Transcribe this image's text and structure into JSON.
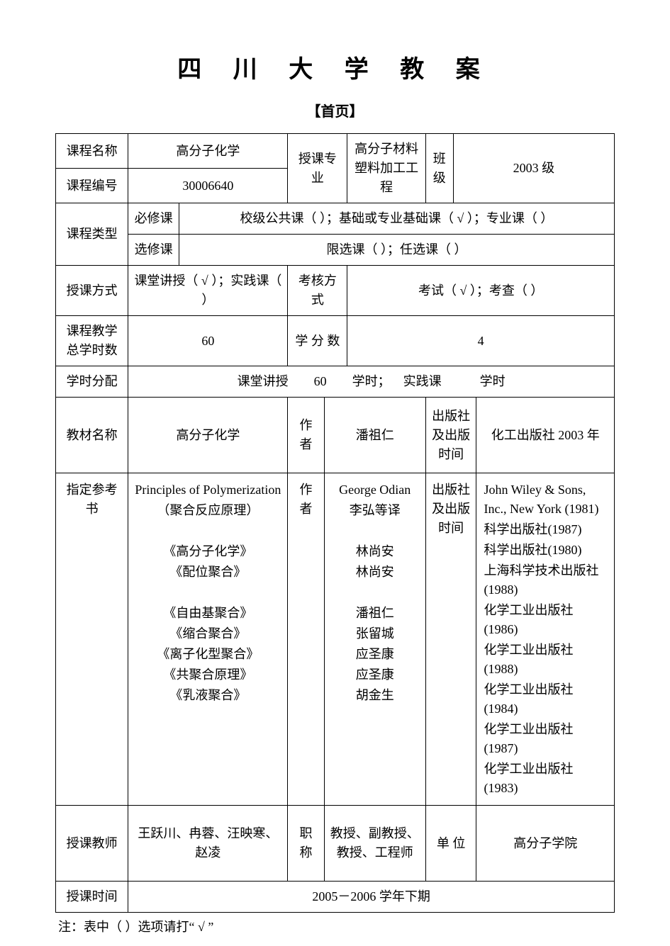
{
  "title": "四 川 大 学 教 案",
  "subtitle": "【首页】",
  "labels": {
    "course_name": "课程名称",
    "course_code": "课程编号",
    "major": "授课专业",
    "class": "班级",
    "course_type": "课程类型",
    "required": "必修课",
    "elective": "选修课",
    "teach_method": "授课方式",
    "exam_method": "考核方式",
    "total_hours": "课程教学总学时数",
    "credits": "学 分 数",
    "hours_dist": "学时分配",
    "textbook": "教材名称",
    "author": "作 者",
    "author2": "作 者",
    "publisher": "出版社及出版时间",
    "publisher2": "出版社及出版时间",
    "ref_books": "指定参考书",
    "teacher": "授课教师",
    "title_rank": "职 称",
    "unit": "单 位",
    "teach_time": "授课时间"
  },
  "values": {
    "course_name": "高分子化学",
    "course_code": "30006640",
    "major": "高分子材料塑料加工工程",
    "class": "2003 级",
    "required_opts": "校级公共课（ ）；基础或专业基础课（ √ ）；专业课（  ）",
    "elective_opts": "限选课（  ）；任选课（  ）",
    "teach_method": "课堂讲授（ √ ）；实践课（  ）",
    "exam_method": "考试（ √ ）；考查（  ）",
    "total_hours": "60",
    "credits": "4",
    "hours_dist": "课堂讲授  60  学时； 实践课   学时",
    "textbook": "高分子化学",
    "textbook_author": "潘祖仁",
    "textbook_pub": "化工出版社 2003 年",
    "teacher": "王跃川、冉蓉、汪映寒、赵凌",
    "title_rank": "教授、副教授、教授、工程师",
    "unit": "高分子学院",
    "teach_time": "2005－2006 学年下期"
  },
  "refs": {
    "books": [
      "Principles of Polymerization",
      "（聚合反应原理）",
      "",
      "《高分子化学》",
      "《配位聚合》",
      "",
      "《自由基聚合》",
      "《缩合聚合》",
      "《离子化型聚合》",
      "《共聚合原理》",
      "《乳液聚合》"
    ],
    "authors": [
      "George Odian",
      "李弘等译",
      "",
      "林尚安",
      "林尚安",
      "",
      "潘祖仁",
      "张留城",
      "应圣康",
      "应圣康",
      "胡金生"
    ],
    "pubs": [
      "John Wiley & Sons, Inc., New York (1981)",
      "科学出版社(1987)",
      "科学出版社(1980)",
      "上海科学技术出版社(1988)",
      "化学工业出版社 (1986)",
      "化学工业出版社 (1988)",
      "化学工业出版社 (1984)",
      "化学工业出版社 (1987)",
      "化学工业出版社 (1983)"
    ]
  },
  "footnote": "注：表中（  ）选项请打“ √ ”"
}
